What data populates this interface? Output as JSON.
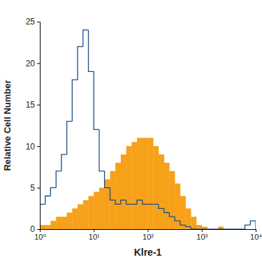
{
  "chart_data": {
    "type": "histogram",
    "x_label": "Klre-1",
    "y_label": "Relative Cell Number",
    "log": "x",
    "grid": false,
    "bins": [
      1,
      1.26,
      1.58,
      2,
      2.51,
      3.16,
      3.98,
      5.01,
      6.31,
      7.94,
      10,
      12.6,
      15.8,
      20,
      25.1,
      31.6,
      39.8,
      50.1,
      63.1,
      79.4,
      100,
      126,
      158,
      200,
      251,
      316,
      398,
      501,
      631,
      794,
      1000,
      1260,
      1580,
      2000,
      2510,
      3160,
      3980,
      5010,
      6310,
      7940,
      10000
    ],
    "series": [
      {
        "type": "bar",
        "color": "#f7a11a",
        "values": [
          0.5,
          0.5,
          1,
          1.5,
          1.5,
          2,
          2.5,
          3,
          3.5,
          4,
          4.5,
          5,
          6,
          7,
          8,
          9,
          10,
          10.5,
          11,
          11,
          11,
          10,
          9,
          8,
          7,
          5.5,
          4,
          2.5,
          1.5,
          0.5,
          0.3,
          0,
          0,
          0.3,
          0,
          0,
          0,
          0,
          0,
          0
        ]
      },
      {
        "type": "line",
        "color": "#1c4f86",
        "values": [
          3,
          4,
          5,
          7,
          9,
          13,
          18,
          22,
          24,
          19,
          12,
          7,
          5,
          3.5,
          3,
          3.5,
          3,
          3,
          3.5,
          3,
          3,
          3,
          2.5,
          2,
          1.5,
          1,
          0.5,
          0.3,
          0,
          0,
          0,
          0,
          0,
          0,
          0,
          0,
          0,
          0,
          0.5,
          1
        ]
      }
    ],
    "xlim": [
      1,
      10000
    ],
    "xticks": [
      {
        "value": 1,
        "label": "10⁰"
      },
      {
        "value": 10,
        "label": "10¹"
      },
      {
        "value": 100,
        "label": "10²"
      },
      {
        "value": 1000,
        "label": "10³"
      },
      {
        "value": 10000,
        "label": "10⁴"
      }
    ],
    "ylim": [
      0,
      25
    ],
    "yticks": [
      0,
      5,
      10,
      15,
      20,
      25
    ]
  }
}
